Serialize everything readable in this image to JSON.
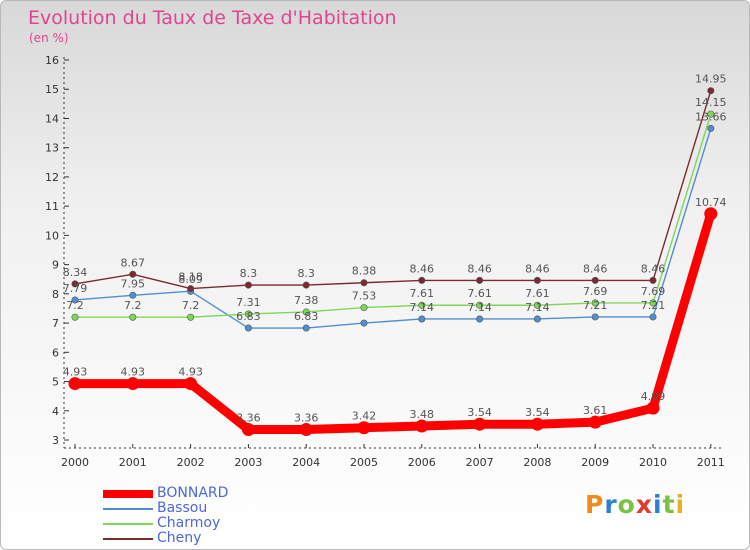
{
  "title": "Evolution du Taux de Taxe d'Habitation",
  "subtitle": "(en %)",
  "logo_text": "Proxiti",
  "logo_colors": [
    "#f08b1d",
    "#2f7fd0",
    "#7bc142",
    "#e23a2f",
    "#2f7fd0",
    "#7bc142",
    "#e8b020"
  ],
  "chart_data": {
    "type": "line",
    "title": "Evolution du Taux de Taxe d'Habitation",
    "ylabel": "(en %)",
    "xlabel": "",
    "ylim": [
      3,
      16
    ],
    "yticks": [
      "3",
      "4",
      "5",
      "6",
      "7",
      "8",
      "9",
      "10",
      "11",
      "12",
      "13",
      "14",
      "15",
      "16"
    ],
    "categories": [
      "2000",
      "2001",
      "2002",
      "2003",
      "2004",
      "2005",
      "2006",
      "2007",
      "2008",
      "2009",
      "2010",
      "2011"
    ],
    "legend_position": "bottom-left",
    "series": [
      {
        "name": "BONNARD",
        "color": "#ff0000",
        "thick": true,
        "values": [
          4.93,
          4.93,
          4.93,
          3.36,
          3.36,
          3.42,
          3.48,
          3.54,
          3.54,
          3.61,
          4.09,
          10.74
        ],
        "labels": [
          "4.93",
          "4.93",
          "4.93",
          "3.36",
          "3.36",
          "3.42",
          "3.48",
          "3.54",
          "3.54",
          "3.61",
          "4.09",
          "10.74"
        ]
      },
      {
        "name": "Bassou",
        "color": "#4f8fd0",
        "thick": false,
        "values": [
          7.79,
          7.95,
          8.09,
          6.83,
          6.83,
          7.0,
          7.14,
          7.14,
          7.14,
          7.21,
          7.21,
          13.66
        ],
        "labels": [
          "7.79",
          "7.95",
          "8.09",
          "6.83",
          "6.83",
          "",
          "7.14",
          "7.14",
          "7.14",
          "7.21",
          "7.21",
          "13.66"
        ]
      },
      {
        "name": "Charmoy",
        "color": "#7fd65a",
        "thick": false,
        "values": [
          7.2,
          7.2,
          7.2,
          7.31,
          7.38,
          7.53,
          7.61,
          7.61,
          7.61,
          7.69,
          7.69,
          14.15
        ],
        "labels": [
          "7.2",
          "7.2",
          "7.2",
          "7.31",
          "7.38",
          "7.53",
          "7.61",
          "7.61",
          "7.61",
          "7.69",
          "7.69",
          "14.15"
        ]
      },
      {
        "name": "Cheny",
        "color": "#7a2a30",
        "thick": false,
        "values": [
          8.34,
          8.67,
          8.18,
          8.3,
          8.3,
          8.38,
          8.46,
          8.46,
          8.46,
          8.46,
          8.46,
          14.95
        ],
        "labels": [
          "8.34",
          "8.67",
          "8.18",
          "8.3",
          "8.3",
          "8.38",
          "8.46",
          "8.46",
          "8.46",
          "8.46",
          "8.46",
          "14.95"
        ]
      }
    ]
  }
}
